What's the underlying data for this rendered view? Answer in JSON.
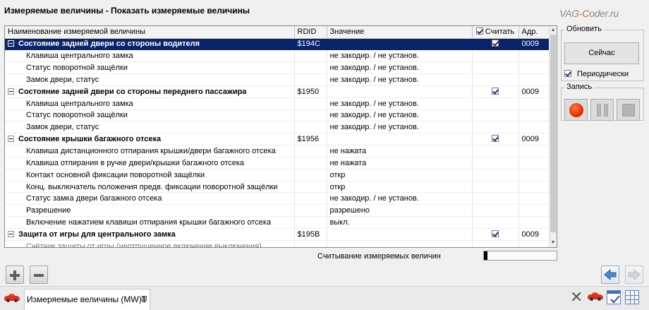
{
  "window": {
    "title": "Измеряемые величины - Показать измеряемые величины",
    "watermark": "VAG-Coder.ru"
  },
  "grid": {
    "columns": [
      {
        "label": "Наименование измеряемой величины"
      },
      {
        "label": "RDID"
      },
      {
        "label": "Значение"
      },
      {
        "label": "Считать",
        "checked": true
      },
      {
        "label": "Адр."
      }
    ],
    "rows": [
      {
        "kind": "group",
        "selected": true,
        "name": "Состояние задней двери со стороны водителя",
        "rdid": "$194C",
        "value": "",
        "read": true,
        "addr": "0009"
      },
      {
        "kind": "item",
        "name": "Клавиша центрального замка",
        "rdid": "",
        "value": "не закодир. / не установ."
      },
      {
        "kind": "item",
        "name": "Статус поворотной защёлки",
        "rdid": "",
        "value": "не закодир. / не установ."
      },
      {
        "kind": "item",
        "name": "Замок двери, статус",
        "rdid": "",
        "value": "не закодир. / не установ."
      },
      {
        "kind": "group",
        "name": "Состояние задней двери со стороны переднего пассажира",
        "rdid": "$1950",
        "value": "",
        "read": true,
        "addr": "0009"
      },
      {
        "kind": "item",
        "name": "Клавиша центрального замка",
        "rdid": "",
        "value": "не закодир. / не установ."
      },
      {
        "kind": "item",
        "name": "Статус поворотной защёлки",
        "rdid": "",
        "value": "не закодир. / не установ."
      },
      {
        "kind": "item",
        "name": "Замок двери, статус",
        "rdid": "",
        "value": "не закодир. / не установ."
      },
      {
        "kind": "group",
        "name": "Состояние крышки багажного отсека",
        "rdid": "$1956",
        "value": "",
        "read": true,
        "addr": "0009"
      },
      {
        "kind": "item",
        "name": "Клавиша дистанционного отпирания крышки/двери багажного отсека",
        "rdid": "",
        "value": "не нажата"
      },
      {
        "kind": "item",
        "name": "Клавиша отпирания в ручке двери/крышки багажного отсека",
        "rdid": "",
        "value": "не нажата"
      },
      {
        "kind": "item",
        "name": "Контакт основной фиксации поворотной защёлки",
        "rdid": "",
        "value": "откр"
      },
      {
        "kind": "item",
        "name": "Конц. выключатель положения предв. фиксации поворотной защёлки",
        "rdid": "",
        "value": "откр"
      },
      {
        "kind": "item",
        "name": "Статус замка двери багажного отсека",
        "rdid": "",
        "value": "не закодир. / не установ."
      },
      {
        "kind": "item",
        "name": "Разрешение",
        "rdid": "",
        "value": "разрешено"
      },
      {
        "kind": "item",
        "name": "Включение нажатием клавиши отпирания крышки багажного отсека",
        "rdid": "",
        "value": "выкл."
      },
      {
        "kind": "group",
        "name": "Защита от игры для центрального замка",
        "rdid": "$195B",
        "value": "",
        "read": true,
        "addr": "0009"
      },
      {
        "kind": "item",
        "partial": true,
        "name": "Счётчик защиты от игры (неотпущенное включение выключения)",
        "rdid": "",
        "value": ""
      }
    ]
  },
  "refresh_panel": {
    "caption": "Обновить",
    "now_button": "Сейчас",
    "periodic_label": "Периодически",
    "periodic_checked": true
  },
  "record_panel": {
    "caption": "Запись",
    "buttons": [
      "record-icon",
      "pause-icon",
      "stop-icon"
    ]
  },
  "status": {
    "label": "Считывание измеряемых величин",
    "progress_fraction": 0.05
  },
  "bottom": {
    "tab_label": "Измеряемые величины (MW)1",
    "tab_close": "⊠"
  },
  "colors": {
    "selection": "#0a246a",
    "record": "#e63000"
  }
}
